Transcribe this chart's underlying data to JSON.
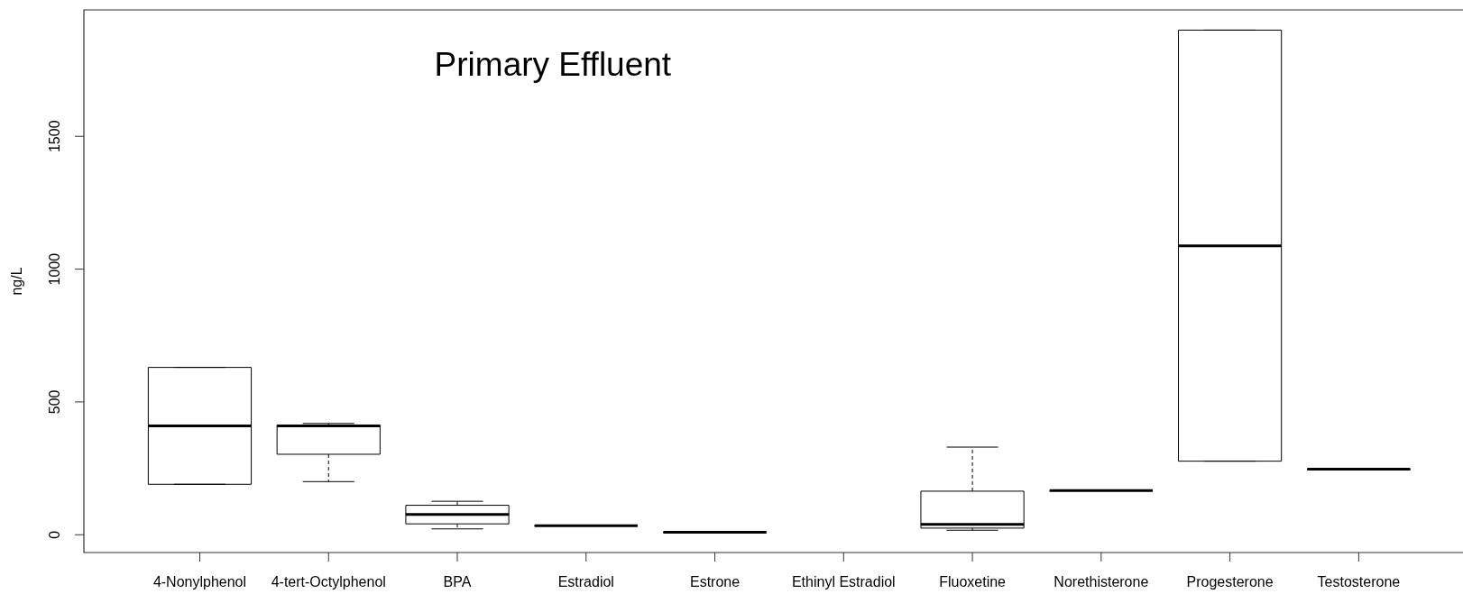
{
  "chart_data": {
    "type": "box",
    "title": "Primary Effluent",
    "ylabel": "ng/L",
    "categories": [
      "4-Nonylphenol",
      "4-tert-Octylphenol",
      "BPA",
      "Estradiol",
      "Estrone",
      "Ethinyl Estradiol",
      "Fluoxetine",
      "Norethisterone",
      "Progesterone",
      "Testosterone"
    ],
    "series": [
      {
        "boxes": [
          {
            "low": 190,
            "q1": 190,
            "median": 410,
            "q3": 630,
            "high": 630
          },
          {
            "low": 200,
            "q1": 303,
            "median": 410,
            "q3": 413,
            "high": 419
          },
          {
            "low": 22,
            "q1": 41,
            "median": 76,
            "q3": 111,
            "high": 126
          },
          {
            "low": 34,
            "q1": 34,
            "median": 34,
            "q3": 34,
            "high": 34
          },
          {
            "low": 9,
            "q1": 9,
            "median": 9,
            "q3": 9,
            "high": 9
          },
          null,
          {
            "low": 17,
            "q1": 25,
            "median": 39,
            "q3": 164,
            "high": 330
          },
          {
            "low": 166,
            "q1": 166,
            "median": 166,
            "q3": 166,
            "high": 166
          },
          {
            "low": 277,
            "q1": 277,
            "median": 1088,
            "q3": 1900,
            "high": 1900
          },
          {
            "low": 247,
            "q1": 247,
            "median": 247,
            "q3": 247,
            "high": 247
          }
        ]
      }
    ],
    "ylim": [
      -67,
      1976
    ],
    "yticks": [
      0,
      500,
      1000,
      1500
    ]
  }
}
